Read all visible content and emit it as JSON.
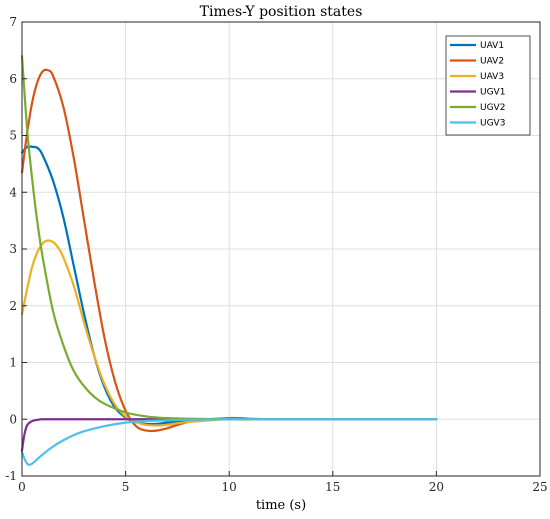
{
  "chart_data": {
    "type": "line",
    "title": "Times-Y position states",
    "xlabel": "time (s)",
    "ylabel": "",
    "xlim": [
      0,
      25
    ],
    "ylim": [
      -1,
      7
    ],
    "xticks": [
      0,
      5,
      10,
      15,
      20,
      25
    ],
    "yticks": [
      -1,
      0,
      1,
      2,
      3,
      4,
      5,
      6,
      7
    ],
    "grid": true,
    "legend_position": "top-right",
    "series": [
      {
        "name": "UAV1",
        "color": "#0072BD",
        "x": [
          0,
          0.25,
          0.5,
          0.75,
          1,
          1.5,
          2,
          2.5,
          3,
          3.5,
          4,
          4.5,
          5,
          5.5,
          6,
          6.5,
          7,
          7.5,
          8,
          9,
          10,
          12,
          14,
          16,
          18,
          20
        ],
        "y": [
          4.7,
          4.8,
          4.8,
          4.78,
          4.65,
          4.2,
          3.55,
          2.7,
          1.85,
          1.1,
          0.55,
          0.2,
          0.03,
          -0.05,
          -0.08,
          -0.08,
          -0.06,
          -0.04,
          -0.02,
          0.0,
          0.0,
          0.0,
          0.0,
          0.0,
          0.0,
          0.0
        ]
      },
      {
        "name": "UAV2",
        "color": "#D95319",
        "x": [
          0,
          0.25,
          0.5,
          0.75,
          1,
          1.25,
          1.5,
          2,
          2.5,
          3,
          3.5,
          4,
          4.5,
          5,
          5.5,
          6,
          6.5,
          7,
          7.5,
          8,
          8.5,
          9,
          10,
          10.5,
          11,
          12,
          14,
          16,
          18,
          20
        ],
        "y": [
          4.35,
          5.05,
          5.6,
          5.95,
          6.13,
          6.15,
          6.05,
          5.5,
          4.6,
          3.5,
          2.4,
          1.4,
          0.65,
          0.15,
          -0.12,
          -0.2,
          -0.2,
          -0.16,
          -0.1,
          -0.05,
          -0.01,
          0.0,
          0.02,
          0.02,
          0.01,
          0.0,
          0.0,
          0.0,
          0.0,
          0.0
        ]
      },
      {
        "name": "UAV3",
        "color": "#EDB120",
        "x": [
          0,
          0.25,
          0.5,
          0.75,
          1,
          1.25,
          1.5,
          1.75,
          2,
          2.5,
          3,
          3.5,
          4,
          4.5,
          5,
          5.5,
          6,
          6.5,
          7,
          7.5,
          8,
          9,
          10,
          12,
          14,
          16,
          18,
          20
        ],
        "y": [
          1.85,
          2.3,
          2.7,
          2.95,
          3.1,
          3.15,
          3.12,
          3.02,
          2.85,
          2.35,
          1.7,
          1.1,
          0.6,
          0.25,
          0.05,
          -0.05,
          -0.1,
          -0.11,
          -0.1,
          -0.07,
          -0.05,
          -0.02,
          0.0,
          0.0,
          0.0,
          0.0,
          0.0,
          0.0
        ]
      },
      {
        "name": "UGV1",
        "color": "#7E2F8E",
        "x": [
          0,
          0.1,
          0.2,
          0.3,
          0.5,
          0.75,
          1,
          1.5,
          2,
          3,
          5,
          10,
          15,
          20
        ],
        "y": [
          -0.55,
          -0.3,
          -0.15,
          -0.08,
          -0.03,
          -0.01,
          0.0,
          0.0,
          0.0,
          0.0,
          0.0,
          0.0,
          0.0,
          0.0
        ]
      },
      {
        "name": "UGV2",
        "color": "#77AC30",
        "x": [
          0,
          0.25,
          0.5,
          0.75,
          1,
          1.5,
          2,
          2.5,
          3,
          3.5,
          4,
          5,
          6,
          7,
          8,
          10,
          12,
          15,
          20
        ],
        "y": [
          6.4,
          5.1,
          4.2,
          3.45,
          2.85,
          1.9,
          1.3,
          0.85,
          0.58,
          0.39,
          0.27,
          0.12,
          0.05,
          0.02,
          0.01,
          0.0,
          0.0,
          0.0,
          0.0
        ]
      },
      {
        "name": "UGV3",
        "color": "#4DBEEE",
        "x": [
          0,
          0.15,
          0.3,
          0.5,
          0.75,
          1,
          1.5,
          2,
          2.5,
          3,
          4,
          5,
          6,
          7,
          8,
          10,
          12,
          15,
          20
        ],
        "y": [
          -0.58,
          -0.72,
          -0.8,
          -0.78,
          -0.7,
          -0.62,
          -0.48,
          -0.37,
          -0.28,
          -0.21,
          -0.12,
          -0.06,
          -0.03,
          -0.02,
          -0.01,
          0.0,
          0.0,
          0.0,
          0.0
        ]
      }
    ]
  }
}
